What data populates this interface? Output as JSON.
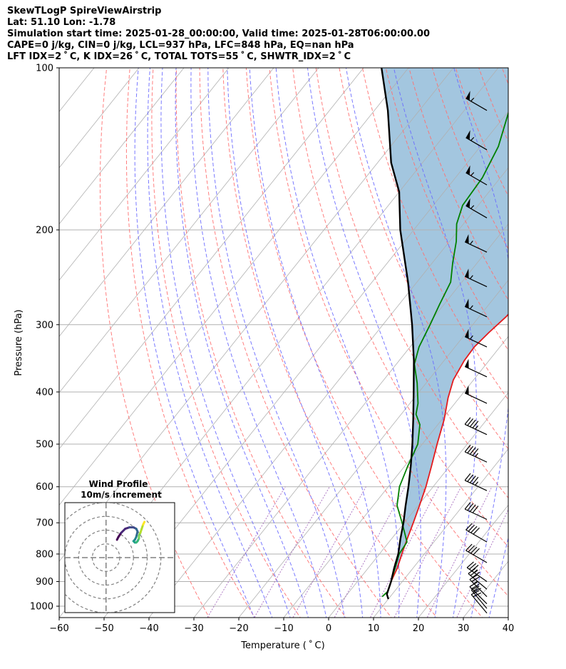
{
  "header": {
    "lines": [
      "SkewTLogP SpireViewAirstrip",
      "Lat: 51.10   Lon: -1.78",
      "Simulation start time: 2025-01-28_00:00:00, Valid time: 2025-01-28T06:00:00.00",
      "CAPE=0 j/kg, CIN=0 j/kg, LCL=937 hPa, LFC=848 hPa, EQ=nan hPa",
      "LFT IDX=2 ˚ C, K IDX=26 ˚ C, TOTAL TOTS=55 ˚ C, SHWTR_IDX=2 ˚ C"
    ]
  },
  "chart_data": [
    {
      "type": "line",
      "subtype": "skew-t log-p",
      "xlabel": "Temperature ( ˚ C)",
      "ylabel": "Pressure (hPa)",
      "xlim": [
        -60,
        40
      ],
      "ylim": [
        1050,
        100
      ],
      "y_scale": "log",
      "x_ticks": [
        "−60",
        "−50",
        "−40",
        "−30",
        "−20",
        "−10",
        "0",
        "10",
        "20",
        "30",
        "40"
      ],
      "y_ticks": [
        "100",
        "200",
        "300",
        "400",
        "500",
        "600",
        "700",
        "800",
        "900",
        "1000"
      ],
      "grid": true,
      "series": [
        {
          "role": "temperature",
          "color": "#e41a1c",
          "points": [
            [
              10.0,
              970
            ],
            [
              8.8,
              950
            ],
            [
              7.5,
              900
            ],
            [
              6.5,
              850
            ],
            [
              5.0,
              800
            ],
            [
              3.5,
              750
            ],
            [
              2.0,
              700
            ],
            [
              0.3,
              650
            ],
            [
              -1.6,
              600
            ],
            [
              -4.0,
              550
            ],
            [
              -6.7,
              500
            ],
            [
              -9.5,
              450
            ],
            [
              -12.5,
              410
            ],
            [
              -14.5,
              380
            ],
            [
              -15.5,
              350
            ],
            [
              -15.7,
              330
            ],
            [
              -15.0,
              310
            ],
            [
              -14.0,
              290
            ],
            [
              -13.5,
              270
            ],
            [
              -13.3,
              250
            ],
            [
              -13.3,
              230
            ],
            [
              -14.5,
              210
            ],
            [
              -16.0,
              190
            ],
            [
              -18.3,
              170
            ],
            [
              -21.0,
              150
            ],
            [
              -24.5,
              130
            ],
            [
              -29.5,
              110
            ],
            [
              -32.0,
              100
            ]
          ]
        },
        {
          "role": "dewpoint",
          "color": "#008000",
          "points": [
            [
              8.2,
              960
            ],
            [
              8.5,
              940
            ],
            [
              7.5,
              900
            ],
            [
              6.0,
              850
            ],
            [
              4.4,
              800
            ],
            [
              4.0,
              760
            ],
            [
              -0.5,
              700
            ],
            [
              -4.7,
              650
            ],
            [
              -7.5,
              600
            ],
            [
              -9.3,
              550
            ],
            [
              -11.0,
              500
            ],
            [
              -14.0,
              460
            ],
            [
              -16.7,
              440
            ],
            [
              -18.2,
              420
            ],
            [
              -22.0,
              385
            ],
            [
              -26.0,
              355
            ],
            [
              -28.0,
              330
            ],
            [
              -29.5,
              300
            ],
            [
              -31.0,
              275
            ],
            [
              -32.5,
              250
            ],
            [
              -35.5,
              230
            ],
            [
              -38.5,
              210
            ],
            [
              -41.5,
              195
            ],
            [
              -43.5,
              180
            ],
            [
              -44.0,
              160
            ],
            [
              -46.0,
              140
            ],
            [
              -50.0,
              120
            ],
            [
              -53.0,
              100
            ]
          ]
        },
        {
          "role": "parcel profile",
          "color": "#000000",
          "points": [
            [
              10.0,
              970
            ],
            [
              8.8,
              950
            ],
            [
              7.5,
              900
            ],
            [
              5.8,
              850
            ],
            [
              4.2,
              800
            ],
            [
              2.0,
              750
            ],
            [
              -0.2,
              700
            ],
            [
              -2.8,
              650
            ],
            [
              -5.5,
              600
            ],
            [
              -8.6,
              550
            ],
            [
              -12.2,
              500
            ],
            [
              -16.4,
              450
            ],
            [
              -21.2,
              400
            ],
            [
              -26.7,
              350
            ],
            [
              -33.5,
              300
            ],
            [
              -42.0,
              250
            ],
            [
              -53.0,
              200
            ],
            [
              -60.0,
              170
            ],
            [
              -67.0,
              150
            ],
            [
              -77.0,
              120
            ],
            [
              -86.0,
              100
            ]
          ]
        }
      ],
      "shading": {
        "role": "cape/cin",
        "color": "#a3c6df"
      },
      "reference_lines": {
        "isotherms_color": "#b0b0b0",
        "dry_adiabats_color": "#ff7070",
        "moist_adiabats_color": "#6a6aff",
        "mixing_ratio_color": "#9b59b6"
      },
      "wind_barbs": {
        "color": "#000000",
        "pressures": [
          120,
          142,
          165,
          190,
          220,
          255,
          290,
          330,
          375,
          420,
          480,
          540,
          610,
          690,
          760,
          830,
          900,
          930,
          960,
          990,
          1010,
          1030
        ],
        "speeds_kt": [
          55,
          55,
          55,
          55,
          55,
          55,
          55,
          55,
          50,
          50,
          45,
          45,
          45,
          40,
          40,
          40,
          35,
          30,
          25,
          25,
          20,
          20
        ],
        "directions_deg": [
          300,
          300,
          300,
          300,
          295,
          295,
          295,
          295,
          295,
          295,
          295,
          295,
          295,
          295,
          300,
          300,
          305,
          310,
          315,
          315,
          320,
          320
        ]
      }
    },
    {
      "type": "scatter",
      "subtype": "hodograph",
      "title": "Wind Profile",
      "subtitle": "10m/s increment",
      "ring_spacing_ms": 10,
      "xlim": [
        -30,
        50
      ],
      "ylim": [
        -40,
        40
      ],
      "points": [
        [
          8,
          13
        ],
        [
          9,
          15
        ],
        [
          11,
          18
        ],
        [
          14,
          21
        ],
        [
          17,
          22
        ],
        [
          20,
          22
        ],
        [
          22,
          21
        ],
        [
          23,
          19
        ],
        [
          22,
          15
        ],
        [
          21,
          13
        ],
        [
          20,
          12
        ],
        [
          21,
          11
        ],
        [
          22,
          11
        ],
        [
          23,
          12
        ],
        [
          24,
          14
        ],
        [
          24,
          16
        ],
        [
          25,
          18
        ],
        [
          26,
          21
        ],
        [
          27,
          24
        ],
        [
          28,
          26
        ]
      ],
      "colormap": [
        "#440154",
        "#482878",
        "#3e4989",
        "#31688e",
        "#26828e",
        "#1f9e89",
        "#35b779",
        "#6ece58",
        "#b5de2b",
        "#fde725"
      ]
    }
  ]
}
